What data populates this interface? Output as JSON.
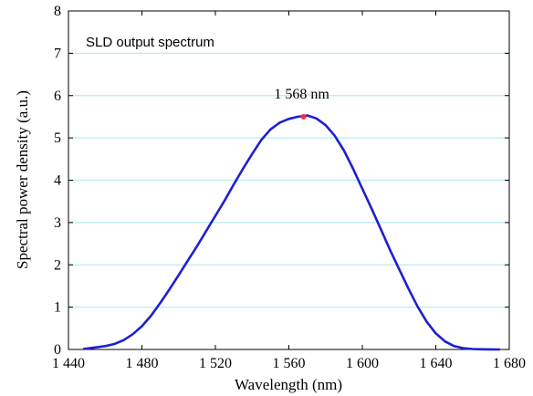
{
  "chart_data": {
    "type": "line",
    "title": "",
    "legend_text": "SLD output spectrum",
    "xlabel": "Wavelength (nm)",
    "ylabel": "Spectral power density (a.u.)",
    "xlim": [
      1440,
      1680
    ],
    "ylim": [
      0,
      8
    ],
    "x_tick_labels": [
      "1 440",
      "1 480",
      "1 520",
      "1 560",
      "1 600",
      "1 640",
      "1 680"
    ],
    "x_tick_values": [
      1440,
      1480,
      1520,
      1560,
      1600,
      1640,
      1680
    ],
    "y_tick_labels": [
      "0",
      "1",
      "2",
      "3",
      "4",
      "5",
      "6",
      "7",
      "8"
    ],
    "y_tick_values": [
      0,
      1,
      2,
      3,
      4,
      5,
      6,
      7,
      8
    ],
    "grid": "horizontal",
    "peak_annotation": {
      "text": "1 568 nm",
      "x": 1568,
      "y": 5.5
    },
    "series": [
      {
        "color": "#1f1fd0",
        "x": [
          1448,
          1455,
          1460,
          1465,
          1470,
          1475,
          1480,
          1485,
          1490,
          1495,
          1500,
          1505,
          1510,
          1515,
          1520,
          1525,
          1530,
          1535,
          1540,
          1545,
          1550,
          1555,
          1560,
          1565,
          1570,
          1575,
          1580,
          1585,
          1590,
          1595,
          1600,
          1605,
          1610,
          1615,
          1620,
          1625,
          1630,
          1635,
          1640,
          1645,
          1650,
          1655,
          1660,
          1665,
          1670,
          1675
        ],
        "y": [
          0.01,
          0.05,
          0.08,
          0.13,
          0.22,
          0.36,
          0.55,
          0.8,
          1.1,
          1.42,
          1.76,
          2.1,
          2.44,
          2.8,
          3.16,
          3.52,
          3.9,
          4.27,
          4.62,
          4.95,
          5.2,
          5.36,
          5.45,
          5.5,
          5.53,
          5.46,
          5.3,
          5.05,
          4.7,
          4.27,
          3.8,
          3.33,
          2.85,
          2.36,
          1.9,
          1.45,
          1.02,
          0.66,
          0.38,
          0.19,
          0.08,
          0.03,
          0.01,
          0.005,
          0.002,
          0.0
        ]
      }
    ]
  }
}
